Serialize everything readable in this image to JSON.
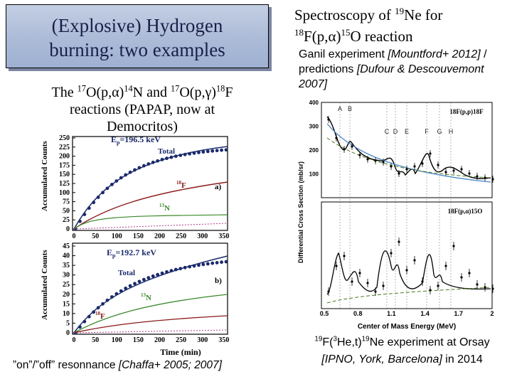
{
  "title": {
    "line1": "(Explosive) Hydrogen",
    "line2": "burning: two examples"
  },
  "subtitle": {
    "prefix": "The ",
    "m1": "17",
    "r1": "O(p,α)",
    "m2": "14",
    "r2": "N and ",
    "m3": "17",
    "r3": "O(p,γ)",
    "m4": "18",
    "r4": "F",
    "line2": "reactions (PAPAP, now at",
    "line3": "Democritos)"
  },
  "right_title": {
    "p1": "Spectroscopy of ",
    "m1": "19",
    "p2": "Ne for",
    "m2": "18",
    "p3": "F(p,α)",
    "m3": "15",
    "p4": "O reaction"
  },
  "ganil": {
    "text": "Ganil experiment ",
    "cite1": "[Mountford+ 2012]",
    "text2": " / predictions ",
    "cite2": "[Dufour & Descouvemont 2007]"
  },
  "bottom_left": {
    "text": "”on”/”off” resonnance ",
    "cite": "[Chaffa+ 2005; 2007]"
  },
  "bottom_right": {
    "m1": "19",
    "p1": "F(",
    "m2": "3",
    "p2": "He,t)",
    "m3": "19",
    "p3": "Ne experiment at Orsay",
    "cite": "[IPNO, York, Barcelona]",
    "tail": " in 2014"
  },
  "left_plot": {
    "ylabel": "Accumulated Counts",
    "xlabel": "Time (min)",
    "x_ticks": [
      "0",
      "50",
      "100",
      "150",
      "200",
      "250",
      "300",
      "350"
    ],
    "panel_a": {
      "label": "a)",
      "energy": "E",
      "energy_sub": "p",
      "energy_val": "=196.5 keV",
      "total": "Total",
      "f18_mass": "18",
      "f18": "F",
      "n13_mass": "13",
      "n13": "N",
      "y_ticks": [
        "0",
        "25",
        "50",
        "75",
        "100",
        "125",
        "150",
        "175",
        "200",
        "225",
        "250"
      ]
    },
    "panel_b": {
      "label": "b)",
      "energy": "E",
      "energy_sub": "p",
      "energy_val": "=192.7 keV",
      "total": "Total",
      "f18_mass": "18",
      "f18": "F",
      "n13_mass": "13",
      "n13": "N",
      "y_ticks": [
        "0",
        "5",
        "10",
        "15",
        "20",
        "25",
        "30",
        "35",
        "40",
        "45"
      ]
    }
  },
  "right_plot": {
    "ylabel": "Differential Cross Section (mb/sr)",
    "xlabel": "Center of Mass Energy (MeV)",
    "x_ticks": [
      "0.5",
      "0.8",
      "1.1",
      "1.4",
      "1.7",
      "2"
    ],
    "y_ticks_top": [
      "100",
      "200",
      "300",
      "400"
    ],
    "top_label": "18F(p,p)18F",
    "bottom_label": "18F(p,α)15O",
    "resonances": [
      "A",
      "B",
      "C",
      "D",
      "E",
      "F",
      "G",
      "H"
    ],
    "colors": {
      "data": "#000000",
      "fit": "#1a1a1a",
      "blue": "#4a86c8",
      "dashed": "#4d7a1a"
    }
  }
}
